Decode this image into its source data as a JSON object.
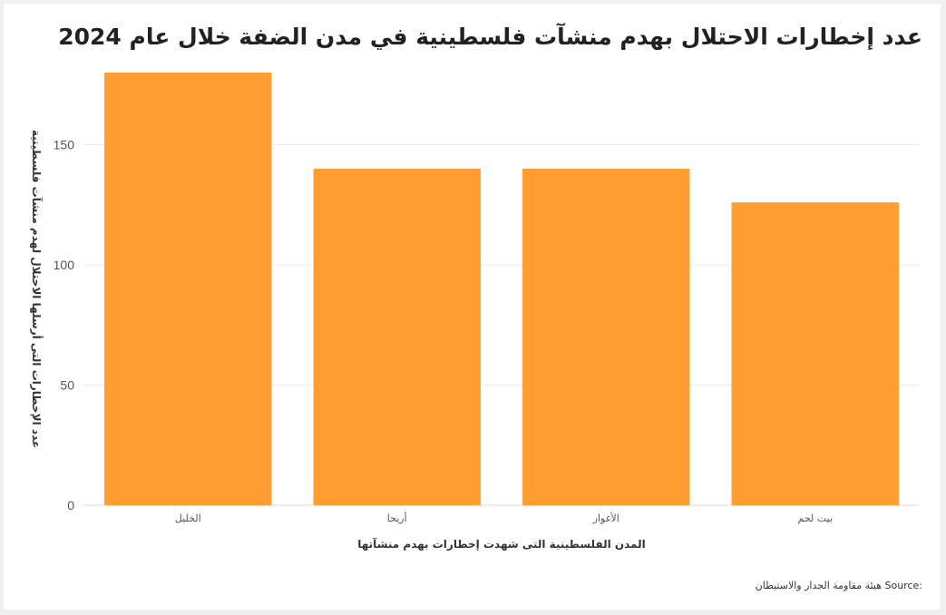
{
  "chart_data": {
    "type": "bar",
    "title": "عدد إخطارات الاحتلال بهدم منشآت فلسطينية في مدن الضفة خلال عام 2024",
    "xlabel": "المدن الفلسطينية التى شهدت إخطارات بهدم منشآتها",
    "ylabel": "عدد الإخطارات التى أرسلها الاحتلال لهدم منشآت فلسطينية",
    "categories": [
      "الخليل",
      "أريحا",
      "الأغوار",
      "بيت لحم"
    ],
    "values": [
      180,
      140,
      140,
      126
    ],
    "ylim": [
      0,
      180
    ],
    "yticks": [
      0,
      50,
      100,
      150
    ],
    "grid": true,
    "bar_color": "#ff9d32"
  },
  "source": {
    "label": "Source:",
    "text": "هيئة مقاومة الجدار والاستيطان"
  }
}
